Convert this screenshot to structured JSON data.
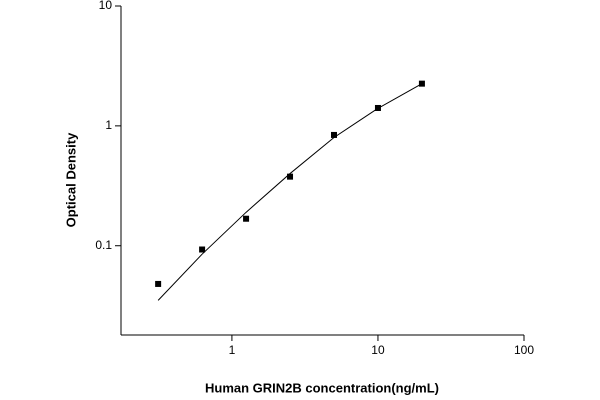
{
  "chart_data": {
    "type": "scatter",
    "xlabel": "Human GRIN2B concentration(ng/mL)",
    "ylabel": "Optical Density",
    "x": [
      0.3125,
      0.625,
      1.25,
      2.5,
      5,
      10,
      20
    ],
    "series": [
      {
        "color": "#000000",
        "mode": "markers",
        "values": [
          0.048,
          0.093,
          0.168,
          0.377,
          0.84,
          1.41,
          2.25
        ]
      },
      {
        "color": "#000000",
        "mode": "line",
        "values": [
          0.035,
          0.085,
          0.19,
          0.4,
          0.8,
          1.4,
          2.25
        ]
      }
    ],
    "xlim": [
      0.174,
      100
    ],
    "ylim": [
      0.018,
      10
    ],
    "xticks": [
      1,
      10,
      100
    ],
    "yticks": [
      0.1,
      1,
      10
    ],
    "xscale": "log",
    "yscale": "log"
  }
}
